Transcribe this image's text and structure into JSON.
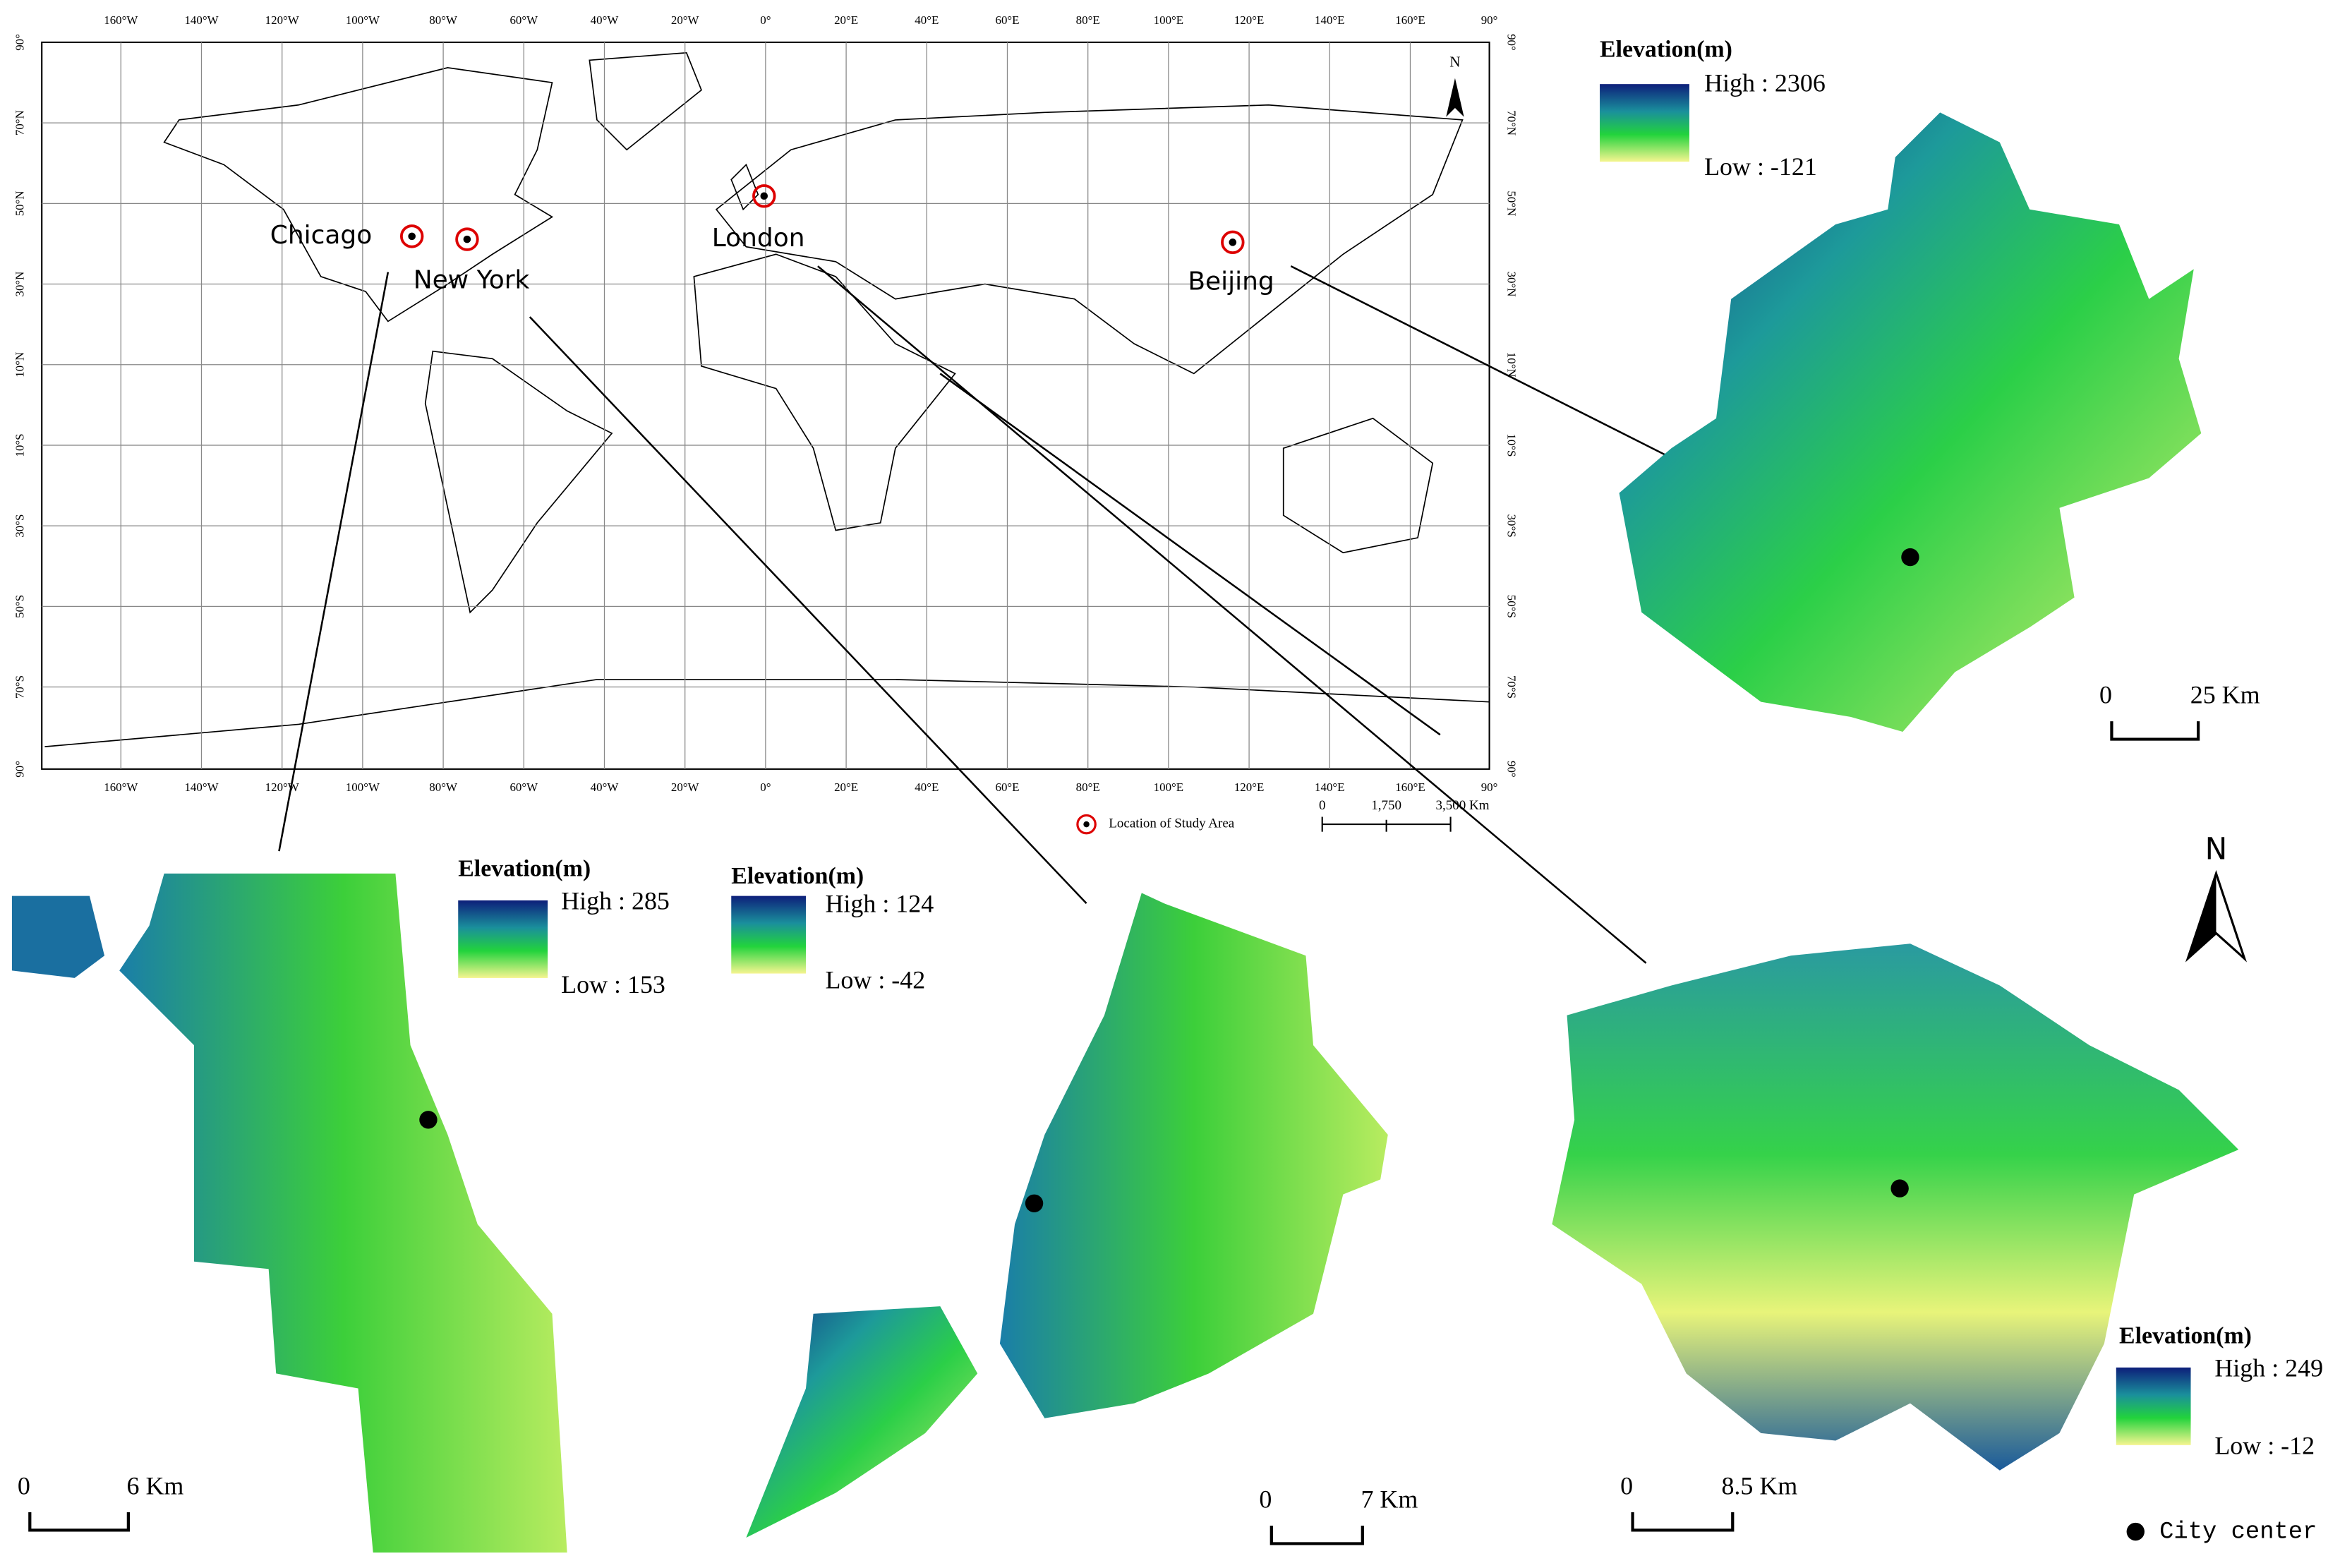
{
  "world_map": {
    "lon_labels": [
      "160°W",
      "140°W",
      "120°W",
      "100°W",
      "80°W",
      "60°W",
      "40°W",
      "20°W",
      "0°",
      "20°E",
      "40°E",
      "60°E",
      "80°E",
      "100°E",
      "120°E",
      "140°E",
      "160°E",
      "90°"
    ],
    "lat_labels": [
      "90°",
      "70°N",
      "50°N",
      "30°N",
      "10°N",
      "10°S",
      "30°S",
      "50°S",
      "70°S",
      "90°"
    ],
    "cities": [
      "Chicago",
      "New York",
      "London",
      "Beijing"
    ],
    "north": "N",
    "legend": "Location of Study Area",
    "scale": [
      "0",
      "1,750",
      "3,500 Km"
    ]
  },
  "panels": [
    {
      "city": "Beijing",
      "legend_title": "Elevation(m)",
      "high": "High : 2306",
      "low": "Low : -121",
      "scale": [
        "0",
        "25 Km"
      ]
    },
    {
      "city": "Chicago",
      "legend_title": "Elevation(m)",
      "high": "High : 285",
      "low": "Low : 153",
      "scale": [
        "0",
        "6 Km"
      ]
    },
    {
      "city": "New York",
      "legend_title": "Elevation(m)",
      "high": "High : 124",
      "low": "Low : -42",
      "scale": [
        "0",
        "7 Km"
      ]
    },
    {
      "city": "London",
      "legend_title": "Elevation(m)",
      "high": "High : 249",
      "low": "Low : -12",
      "scale": [
        "0",
        "8.5 Km"
      ]
    }
  ],
  "north": "N",
  "city_center": "City center"
}
